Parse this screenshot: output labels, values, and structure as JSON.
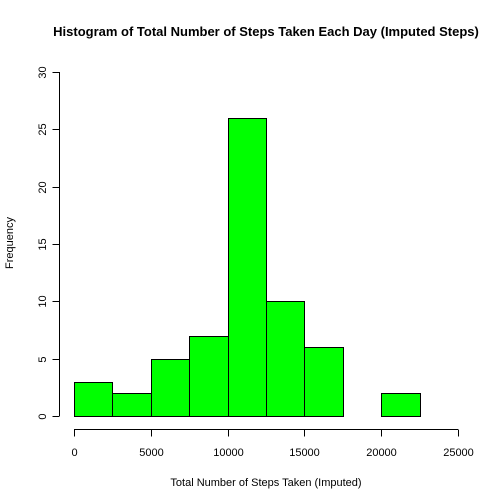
{
  "chart_data": {
    "type": "bar",
    "subtype": "histogram",
    "title": "Histogram of Total Number of Steps Taken Each Day (Imputed Steps)",
    "xlabel": "Total Number of Steps Taken (Imputed)",
    "ylabel": "Frequency",
    "bin_edges": [
      0,
      2500,
      5000,
      7500,
      10000,
      12500,
      15000,
      17500,
      20000,
      22500
    ],
    "values": [
      3,
      2,
      5,
      7,
      26,
      10,
      6,
      0,
      2
    ],
    "xlim": [
      0,
      25000
    ],
    "ylim": [
      0,
      30
    ],
    "x_ticks": [
      0,
      5000,
      10000,
      15000,
      20000,
      25000
    ],
    "x_tick_labels": [
      "0",
      "5000",
      "10000",
      "15000",
      "20000",
      "25000"
    ],
    "y_ticks": [
      0,
      5,
      10,
      15,
      20,
      25,
      30
    ],
    "y_tick_labels": [
      "0",
      "5",
      "10",
      "15",
      "20",
      "25",
      "30"
    ],
    "bar_color": "#00ff00",
    "border_color": "#000000",
    "grid": false,
    "legend": "none"
  }
}
